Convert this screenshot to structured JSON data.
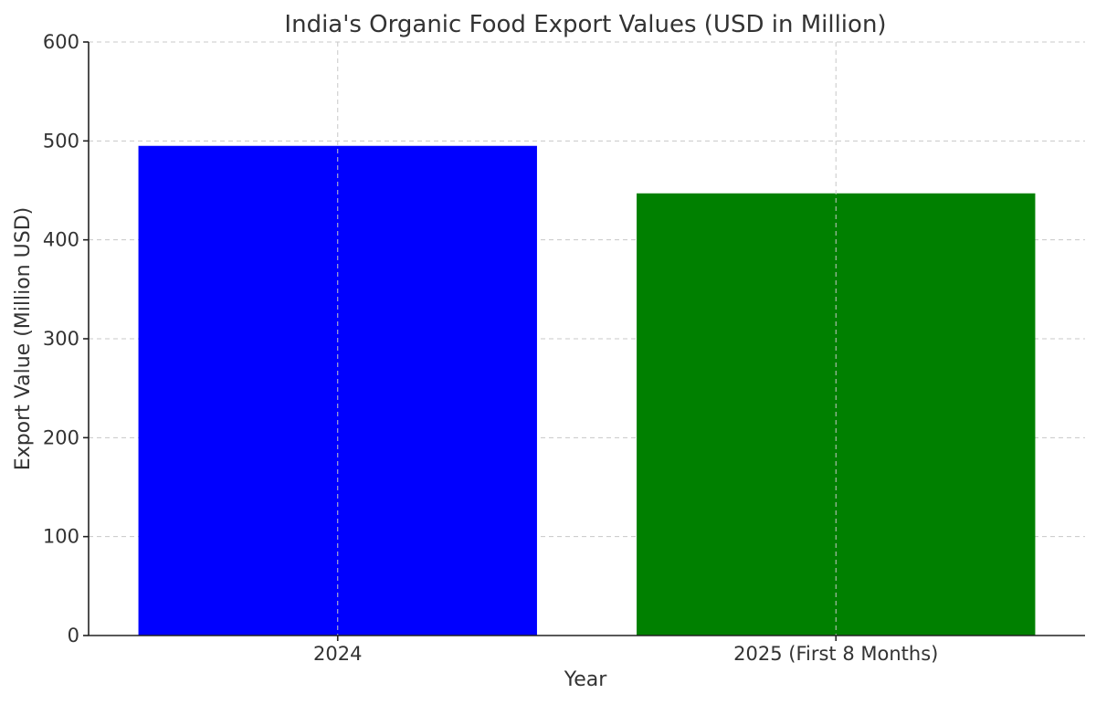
{
  "chart_data": {
    "type": "bar",
    "title": "India's Organic Food Export Values (USD in Million)",
    "xlabel": "Year",
    "ylabel": "Export Value (Million USD)",
    "categories": [
      "2024",
      "2025 (First 8 Months)"
    ],
    "values": [
      495,
      447
    ],
    "colors": [
      "#0000ff",
      "#008000"
    ],
    "ylim": [
      0,
      600
    ],
    "yticks": [
      0,
      100,
      200,
      300,
      400,
      500,
      600
    ],
    "grid": true
  }
}
